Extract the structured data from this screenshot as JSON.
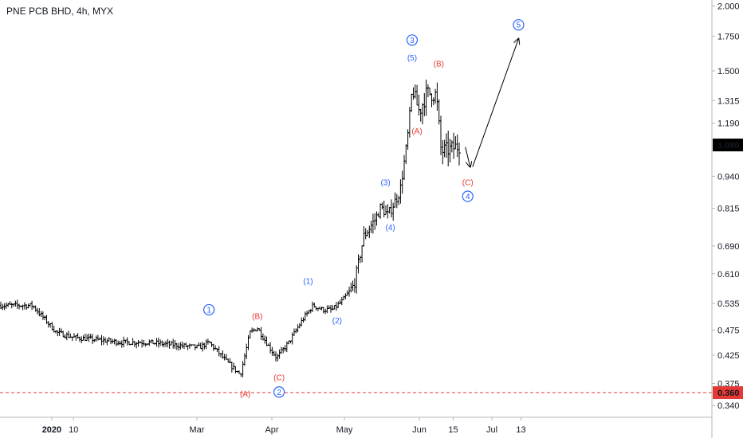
{
  "header": {
    "title": "PNE PCB BHD, 4h, MYX"
  },
  "colors": {
    "background": "#ffffff",
    "bars": "#000000",
    "axis_text": "#131722",
    "blue_label": "#2962ff",
    "red_label": "#e53935",
    "support_line": "#e53935",
    "price_badge": "#000000",
    "support_badge": "#e53935",
    "axis_line": "#b2b5be"
  },
  "chart_data": {
    "type": "ohlc",
    "title": "PNE PCB BHD, 4h, MYX",
    "y_scale": "log",
    "ylim": [
      0.325,
      2.04
    ],
    "y_ticks": [
      "2.000",
      "1.750",
      "1.500",
      "1.315",
      "1.190",
      "1.080",
      "0.940",
      "0.815",
      "0.690",
      "0.610",
      "0.535",
      "0.475",
      "0.425",
      "0.375",
      "0.340"
    ],
    "x_ticks": [
      "2020",
      "10",
      "Mar",
      "Apr",
      "May",
      "Jun",
      "15",
      "Jul",
      "13"
    ],
    "grid": false,
    "last_price": "1.080",
    "support_level": "0.360",
    "price_path": [
      [
        "2019-12-24",
        0.53
      ],
      [
        "2020-01-03",
        0.47
      ],
      [
        "2020-01-10",
        0.46
      ],
      [
        "2020-01-20",
        0.455
      ],
      [
        "2020-01-30",
        0.45
      ],
      [
        "2020-02-10",
        0.45
      ],
      [
        "2020-02-20",
        0.445
      ],
      [
        "2020-03-02",
        0.44
      ],
      [
        "2020-03-06",
        0.45
      ],
      [
        "2020-03-14",
        0.41
      ],
      [
        "2020-03-19",
        0.39
      ],
      [
        "2020-03-23",
        0.47
      ],
      [
        "2020-03-26",
        0.48
      ],
      [
        "2020-03-31",
        0.44
      ],
      [
        "2020-04-03",
        0.42
      ],
      [
        "2020-04-08",
        0.45
      ],
      [
        "2020-04-14",
        0.5
      ],
      [
        "2020-04-18",
        0.53
      ],
      [
        "2020-04-22",
        0.52
      ],
      [
        "2020-04-26",
        0.52
      ],
      [
        "2020-04-30",
        0.54
      ],
      [
        "2020-05-05",
        0.58
      ],
      [
        "2020-05-09",
        0.72
      ],
      [
        "2020-05-14",
        0.78
      ],
      [
        "2020-05-16",
        0.82
      ],
      [
        "2020-05-19",
        0.79
      ],
      [
        "2020-05-24",
        0.88
      ],
      [
        "2020-05-27",
        1.1
      ],
      [
        "2020-05-29",
        1.38
      ],
      [
        "2020-06-01",
        1.25
      ],
      [
        "2020-06-04",
        1.36
      ],
      [
        "2020-06-08",
        1.35
      ],
      [
        "2020-06-10",
        1.05
      ],
      [
        "2020-06-14",
        1.06
      ],
      [
        "2020-06-18",
        1.08
      ]
    ],
    "projection": [
      {
        "from": [
          "2020-06-20",
          1.07
        ],
        "to": [
          "2020-06-22",
          0.98
        ]
      },
      {
        "from": [
          "2020-06-23",
          0.98
        ],
        "to": [
          "2020-07-12",
          1.73
        ]
      }
    ],
    "wave_labels": [
      {
        "text": "1",
        "style": "circle",
        "color": "blue",
        "date": "2020-03-06",
        "price": 0.52
      },
      {
        "text": "(B)",
        "style": "plain",
        "color": "red",
        "date": "2020-03-26",
        "price": 0.505
      },
      {
        "text": "(A)",
        "style": "plain",
        "color": "red",
        "date": "2020-03-21",
        "price": 0.358
      },
      {
        "text": "(C)",
        "style": "plain",
        "color": "red",
        "date": "2020-04-04",
        "price": 0.385
      },
      {
        "text": "2",
        "style": "circle",
        "color": "blue",
        "date": "2020-04-04",
        "price": 0.361
      },
      {
        "text": "(1)",
        "style": "plain",
        "color": "blue",
        "date": "2020-04-16",
        "price": 0.59
      },
      {
        "text": "(2)",
        "style": "plain",
        "color": "blue",
        "date": "2020-04-28",
        "price": 0.496
      },
      {
        "text": "(3)",
        "style": "plain",
        "color": "blue",
        "date": "2020-05-18",
        "price": 0.915
      },
      {
        "text": "(4)",
        "style": "plain",
        "color": "blue",
        "date": "2020-05-20",
        "price": 0.75
      },
      {
        "text": "3",
        "style": "circle",
        "color": "blue",
        "date": "2020-05-29",
        "price": 1.72
      },
      {
        "text": "(5)",
        "style": "plain",
        "color": "blue",
        "date": "2020-05-29",
        "price": 1.59
      },
      {
        "text": "(A)",
        "style": "plain",
        "color": "red",
        "date": "2020-05-31",
        "price": 1.15
      },
      {
        "text": "(B)",
        "style": "plain",
        "color": "red",
        "date": "2020-06-09",
        "price": 1.55
      },
      {
        "text": "(C)",
        "style": "plain",
        "color": "red",
        "date": "2020-06-21",
        "price": 0.915
      },
      {
        "text": "4",
        "style": "circle",
        "color": "blue",
        "date": "2020-06-21",
        "price": 0.86
      },
      {
        "text": "5",
        "style": "circle",
        "color": "blue",
        "date": "2020-07-12",
        "price": 1.84
      }
    ]
  }
}
